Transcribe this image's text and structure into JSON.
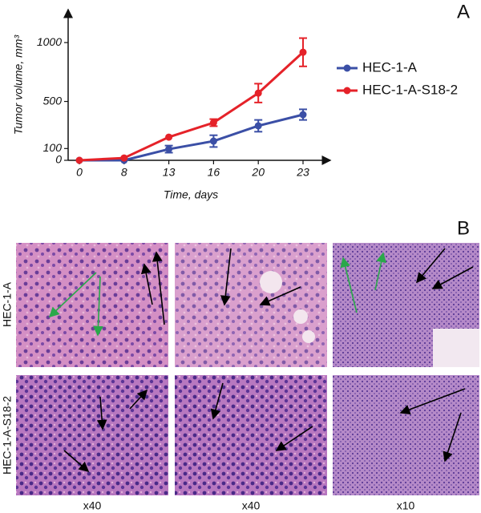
{
  "chart_data": {
    "type": "line",
    "y_label": "Tumor volume, mm³",
    "x_label": "Time, days",
    "categories": [
      "0",
      "8",
      "13",
      "16",
      "20",
      "23"
    ],
    "series": [
      {
        "name": "HEC-1-A",
        "color": "#3b4fa6",
        "values": [
          0,
          0,
          95,
          163,
          293,
          388
        ],
        "errors": [
          0,
          0,
          30,
          50,
          50,
          45
        ]
      },
      {
        "name": "HEC-1-A-S18-2",
        "color": "#e52229",
        "values": [
          0,
          20,
          197,
          320,
          571,
          918
        ],
        "errors": [
          0,
          0,
          0,
          30,
          80,
          120
        ]
      }
    ],
    "ylim": [
      0,
      1280
    ],
    "yticks": [
      0,
      100,
      500,
      1000
    ],
    "legend": "right"
  },
  "panel_labels": [
    "A",
    "B"
  ],
  "rows": [
    "HEC-1-A",
    "HEC-1-A-S18-2"
  ],
  "magnifications": [
    "x40",
    "x40",
    "x10"
  ]
}
